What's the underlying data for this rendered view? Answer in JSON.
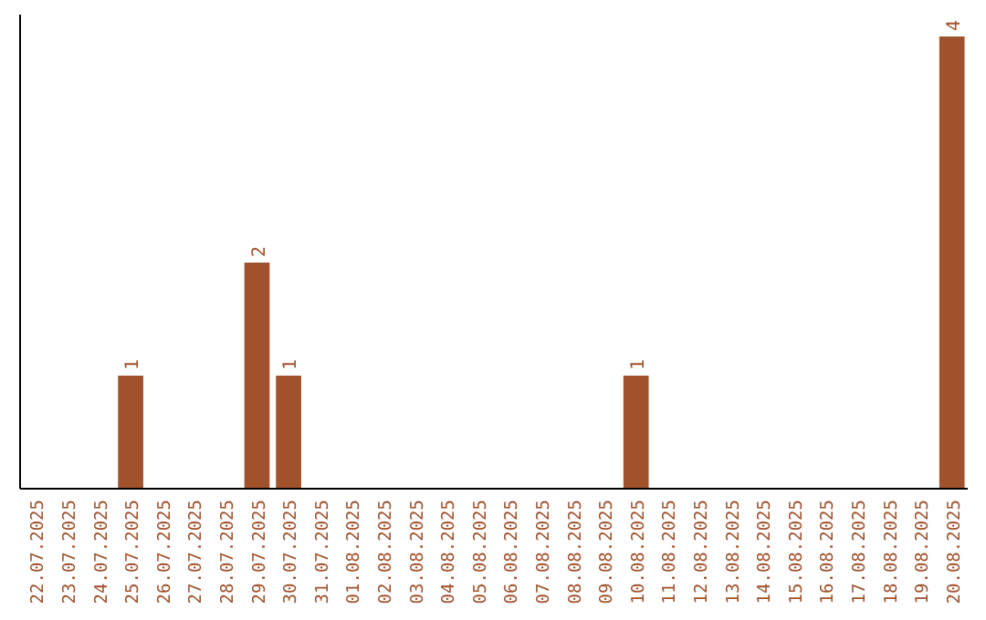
{
  "chart_data": {
    "type": "bar",
    "categories": [
      "22.07.2025",
      "23.07.2025",
      "24.07.2025",
      "25.07.2025",
      "26.07.2025",
      "27.07.2025",
      "28.07.2025",
      "29.07.2025",
      "30.07.2025",
      "31.07.2025",
      "01.08.2025",
      "02.08.2025",
      "03.08.2025",
      "04.08.2025",
      "05.08.2025",
      "06.08.2025",
      "07.08.2025",
      "08.08.2025",
      "09.08.2025",
      "10.08.2025",
      "11.08.2025",
      "12.08.2025",
      "13.08.2025",
      "14.08.2025",
      "15.08.2025",
      "16.08.2025",
      "17.08.2025",
      "18.08.2025",
      "19.08.2025",
      "20.08.2025"
    ],
    "values": [
      0,
      0,
      0,
      1,
      0,
      0,
      0,
      2,
      1,
      0,
      0,
      0,
      0,
      0,
      0,
      0,
      0,
      0,
      0,
      1,
      0,
      0,
      0,
      0,
      0,
      0,
      0,
      0,
      0,
      4
    ],
    "value_labels": [
      null,
      null,
      null,
      "1",
      null,
      null,
      null,
      "2",
      "1",
      null,
      null,
      null,
      null,
      null,
      null,
      null,
      null,
      null,
      null,
      "1",
      null,
      null,
      null,
      null,
      null,
      null,
      null,
      null,
      null,
      "4"
    ],
    "color": "#a0522d"
  }
}
